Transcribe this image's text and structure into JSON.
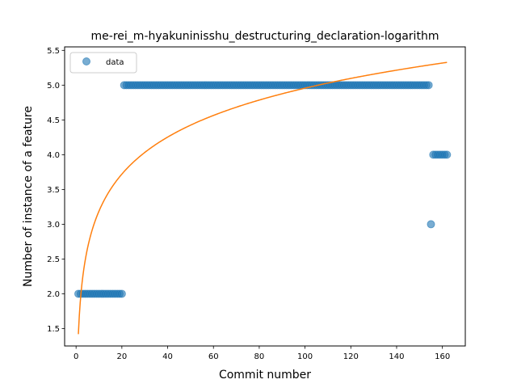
{
  "chart_data": {
    "type": "scatter",
    "title": "me-rei_m-hyakuninisshu_destructuring_declaration-logarithm",
    "xlabel": "Commit number",
    "ylabel": "Number of instance of a feature",
    "xlim": [
      -5,
      170
    ],
    "ylim": [
      1.25,
      5.55
    ],
    "xticks": [
      0,
      20,
      40,
      60,
      80,
      100,
      120,
      140,
      160
    ],
    "yticks": [
      1.5,
      2.0,
      2.5,
      3.0,
      3.5,
      4.0,
      4.5,
      5.0,
      5.5
    ],
    "xtick_labels": [
      "0",
      "20",
      "40",
      "60",
      "80",
      "100",
      "120",
      "140",
      "160"
    ],
    "ytick_labels": [
      "1.5",
      "2.0",
      "2.5",
      "3.0",
      "3.5",
      "4.0",
      "4.5",
      "5.0",
      "5.5"
    ],
    "grid": false,
    "legend_position": "top-left",
    "series": [
      {
        "name": "data",
        "kind": "scatter",
        "color": "#1f77b4",
        "segments": [
          {
            "x_start": 1,
            "x_end": 20,
            "y": 2
          },
          {
            "x_start": 21,
            "x_end": 154,
            "y": 5
          },
          {
            "x_start": 155,
            "x_end": 155,
            "y": 3
          },
          {
            "x_start": 156,
            "x_end": 162,
            "y": 4
          }
        ]
      },
      {
        "kind": "line",
        "color": "#ff7f0e",
        "model": "a + b*ln(x)",
        "a": 1.42,
        "b": 0.768,
        "x_start": 1,
        "x_end": 162
      }
    ]
  }
}
